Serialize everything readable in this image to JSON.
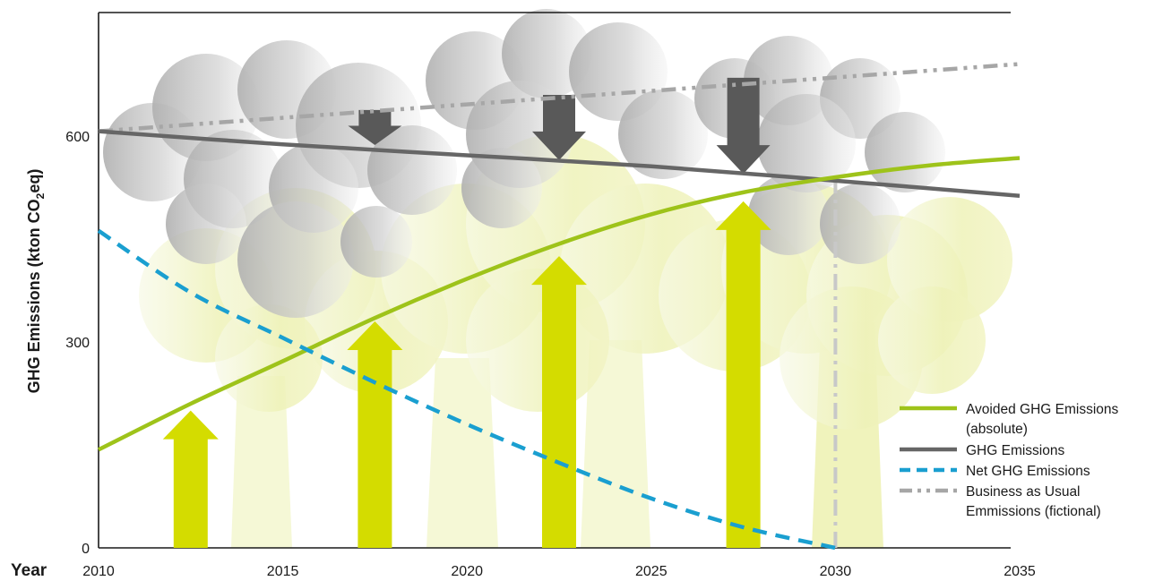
{
  "chart_data": {
    "type": "line",
    "title": "",
    "xlabel": "Year",
    "ylabel_main": "GHG Emissions (kton CO",
    "ylabel_sub": "2",
    "ylabel_end": "eq)",
    "xlim": [
      2010,
      2035
    ],
    "ylim": [
      0,
      780
    ],
    "x_ticks": [
      "2010",
      "2015",
      "2020",
      "2025",
      "2030",
      "2035"
    ],
    "y_ticks": [
      "0",
      "300",
      "600"
    ],
    "grid": false,
    "legend_position": "bottom-right",
    "series": [
      {
        "name": "Avoided GHG Emissions",
        "name_line2": "(absolute)",
        "color": "#9ec31a",
        "style": "solid",
        "x": [
          2010,
          2012.5,
          2015,
          2017.5,
          2020,
          2022.5,
          2025,
          2027.5,
          2030,
          2032.5,
          2035
        ],
        "y": [
          143,
          210,
          272,
          335,
          392,
          443,
          486,
          518,
          540,
          557,
          568
        ]
      },
      {
        "name": "GHG Emissions",
        "color": "#666666",
        "style": "solid",
        "x": [
          2010,
          2015,
          2020,
          2025,
          2030,
          2035
        ],
        "y": [
          607,
          588,
          572,
          556,
          535,
          513
        ]
      },
      {
        "name": "Net GHG Emissions",
        "color": "#1a9fd0",
        "style": "dashed",
        "x": [
          2010,
          2012.5,
          2015,
          2017.5,
          2020,
          2022.5,
          2025,
          2027.5,
          2030
        ],
        "y": [
          462,
          372,
          306,
          241,
          180,
          124,
          72,
          30,
          0
        ]
      },
      {
        "name": "Business as Usual",
        "name_line2": "Emmissions (fictional)",
        "color": "#a6a6a6",
        "style": "dash-dot-dot",
        "x": [
          2010,
          2035
        ],
        "y": [
          607,
          705
        ]
      }
    ],
    "markers": {
      "vertical_line_x": 2030,
      "vertical_line_color": "#c8c8c8",
      "avoided_arrows": [
        {
          "x": 2012.5,
          "y_top": 200
        },
        {
          "x": 2017.5,
          "y_top": 330
        },
        {
          "x": 2022.5,
          "y_top": 425
        },
        {
          "x": 2027.5,
          "y_top": 505
        }
      ],
      "reduction_arrows": [
        {
          "x": 2017.5,
          "y_from": 638,
          "y_to": 587
        },
        {
          "x": 2022.5,
          "y_from": 660,
          "y_to": 565
        },
        {
          "x": 2027.5,
          "y_from": 685,
          "y_to": 545
        }
      ],
      "up_arrow_color": "#d4dc00",
      "down_arrow_color": "#595959"
    }
  }
}
